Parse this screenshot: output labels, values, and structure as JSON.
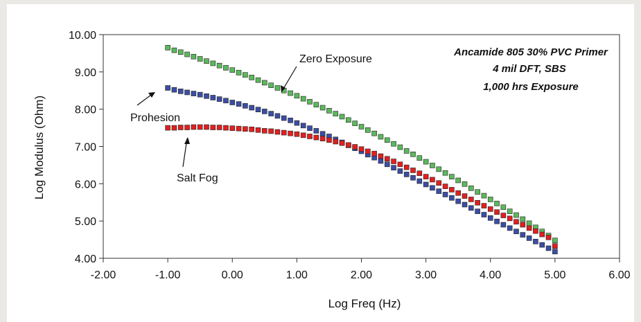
{
  "chart_data": {
    "type": "scatter",
    "title": "",
    "xlabel": "Log Freq (Hz)",
    "ylabel": "Log Modulus (Ohm)",
    "xlim": [
      -2,
      6
    ],
    "ylim": [
      4,
      10
    ],
    "xticks": [
      "-2.00",
      "-1.00",
      "0.00",
      "1.00",
      "2.00",
      "3.00",
      "4.00",
      "5.00",
      "6.00"
    ],
    "yticks": [
      "4.00",
      "5.00",
      "6.00",
      "7.00",
      "8.00",
      "9.00",
      "10.00"
    ],
    "grid": false,
    "legend": "none",
    "annotation_lines": [
      "Ancamide 805 30% PVC Primer",
      "4 mil DFT, SBS",
      "1,000 hrs Exposure"
    ],
    "series": [
      {
        "label": "Zero Exposure",
        "color": "#5cb85c",
        "x": [
          -1.0,
          -0.9,
          -0.8,
          -0.7,
          -0.6,
          -0.5,
          -0.4,
          -0.3,
          -0.2,
          -0.1,
          0.0,
          0.1,
          0.2,
          0.3,
          0.4,
          0.5,
          0.6,
          0.7,
          0.8,
          0.9,
          1.0,
          1.1,
          1.2,
          1.3,
          1.4,
          1.5,
          1.6,
          1.7,
          1.8,
          1.9,
          2.0,
          2.1,
          2.2,
          2.3,
          2.4,
          2.5,
          2.6,
          2.7,
          2.8,
          2.9,
          3.0,
          3.1,
          3.2,
          3.3,
          3.4,
          3.5,
          3.6,
          3.7,
          3.8,
          3.9,
          4.0,
          4.1,
          4.2,
          4.3,
          4.4,
          4.5,
          4.6,
          4.7,
          4.8,
          4.9,
          5.0
        ],
        "y": [
          9.65,
          9.58,
          9.53,
          9.47,
          9.41,
          9.35,
          9.29,
          9.23,
          9.17,
          9.11,
          9.05,
          8.98,
          8.92,
          8.85,
          8.78,
          8.71,
          8.64,
          8.57,
          8.5,
          8.43,
          8.36,
          8.28,
          8.2,
          8.12,
          8.04,
          7.96,
          7.88,
          7.8,
          7.71,
          7.62,
          7.53,
          7.44,
          7.35,
          7.26,
          7.17,
          7.07,
          6.98,
          6.88,
          6.79,
          6.69,
          6.59,
          6.49,
          6.39,
          6.29,
          6.19,
          6.09,
          5.99,
          5.88,
          5.78,
          5.68,
          5.58,
          5.47,
          5.37,
          5.26,
          5.16,
          5.05,
          4.94,
          4.83,
          4.72,
          4.61,
          4.48
        ]
      },
      {
        "label": "Prohesion",
        "color": "#3b4ea3",
        "x": [
          -1.0,
          -0.9,
          -0.8,
          -0.7,
          -0.6,
          -0.5,
          -0.4,
          -0.3,
          -0.2,
          -0.1,
          0.0,
          0.1,
          0.2,
          0.3,
          0.4,
          0.5,
          0.6,
          0.7,
          0.8,
          0.9,
          1.0,
          1.1,
          1.2,
          1.3,
          1.4,
          1.5,
          1.6,
          1.7,
          1.8,
          1.9,
          2.0,
          2.1,
          2.2,
          2.3,
          2.4,
          2.5,
          2.6,
          2.7,
          2.8,
          2.9,
          3.0,
          3.1,
          3.2,
          3.3,
          3.4,
          3.5,
          3.6,
          3.7,
          3.8,
          3.9,
          4.0,
          4.1,
          4.2,
          4.3,
          4.4,
          4.5,
          4.6,
          4.7,
          4.8,
          4.9,
          5.0
        ],
        "y": [
          8.57,
          8.52,
          8.48,
          8.45,
          8.42,
          8.39,
          8.35,
          8.31,
          8.27,
          8.23,
          8.18,
          8.14,
          8.09,
          8.04,
          7.99,
          7.94,
          7.88,
          7.82,
          7.76,
          7.7,
          7.63,
          7.56,
          7.49,
          7.42,
          7.34,
          7.27,
          7.19,
          7.11,
          7.03,
          6.95,
          6.87,
          6.78,
          6.7,
          6.61,
          6.52,
          6.43,
          6.34,
          6.25,
          6.16,
          6.07,
          5.98,
          5.89,
          5.8,
          5.71,
          5.62,
          5.53,
          5.44,
          5.35,
          5.26,
          5.17,
          5.08,
          4.99,
          4.9,
          4.81,
          4.72,
          4.63,
          4.54,
          4.45,
          4.36,
          4.27,
          4.18
        ]
      },
      {
        "label": "Salt Fog",
        "color": "#e02020",
        "x": [
          -1.0,
          -0.9,
          -0.8,
          -0.7,
          -0.6,
          -0.5,
          -0.4,
          -0.3,
          -0.2,
          -0.1,
          0.0,
          0.1,
          0.2,
          0.3,
          0.4,
          0.5,
          0.6,
          0.7,
          0.8,
          0.9,
          1.0,
          1.1,
          1.2,
          1.3,
          1.4,
          1.5,
          1.6,
          1.7,
          1.8,
          1.9,
          2.0,
          2.1,
          2.2,
          2.3,
          2.4,
          2.5,
          2.6,
          2.7,
          2.8,
          2.9,
          3.0,
          3.1,
          3.2,
          3.3,
          3.4,
          3.5,
          3.6,
          3.7,
          3.8,
          3.9,
          4.0,
          4.1,
          4.2,
          4.3,
          4.4,
          4.5,
          4.6,
          4.7,
          4.8,
          4.9,
          5.0
        ],
        "y": [
          7.5,
          7.5,
          7.51,
          7.51,
          7.52,
          7.52,
          7.52,
          7.51,
          7.51,
          7.5,
          7.49,
          7.48,
          7.47,
          7.46,
          7.44,
          7.42,
          7.41,
          7.39,
          7.37,
          7.35,
          7.33,
          7.3,
          7.27,
          7.24,
          7.21,
          7.17,
          7.13,
          7.09,
          7.04,
          6.99,
          6.93,
          6.87,
          6.81,
          6.74,
          6.67,
          6.6,
          6.52,
          6.44,
          6.36,
          6.28,
          6.19,
          6.11,
          6.02,
          5.93,
          5.84,
          5.75,
          5.67,
          5.58,
          5.49,
          5.41,
          5.32,
          5.24,
          5.15,
          5.07,
          4.98,
          4.9,
          4.81,
          4.73,
          4.64,
          4.56,
          4.33
        ]
      }
    ]
  }
}
